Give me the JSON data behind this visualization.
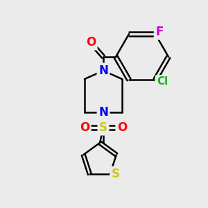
{
  "bg_color": "#ebebeb",
  "bond_color": "#000000",
  "bond_width": 1.8,
  "atom_colors": {
    "O": "#ff0000",
    "N": "#0000ff",
    "Cl": "#00bb00",
    "F": "#cc00cc",
    "S_sulfonyl": "#cccc00",
    "S_thiophene": "#cccc00"
  },
  "font_size": 11
}
